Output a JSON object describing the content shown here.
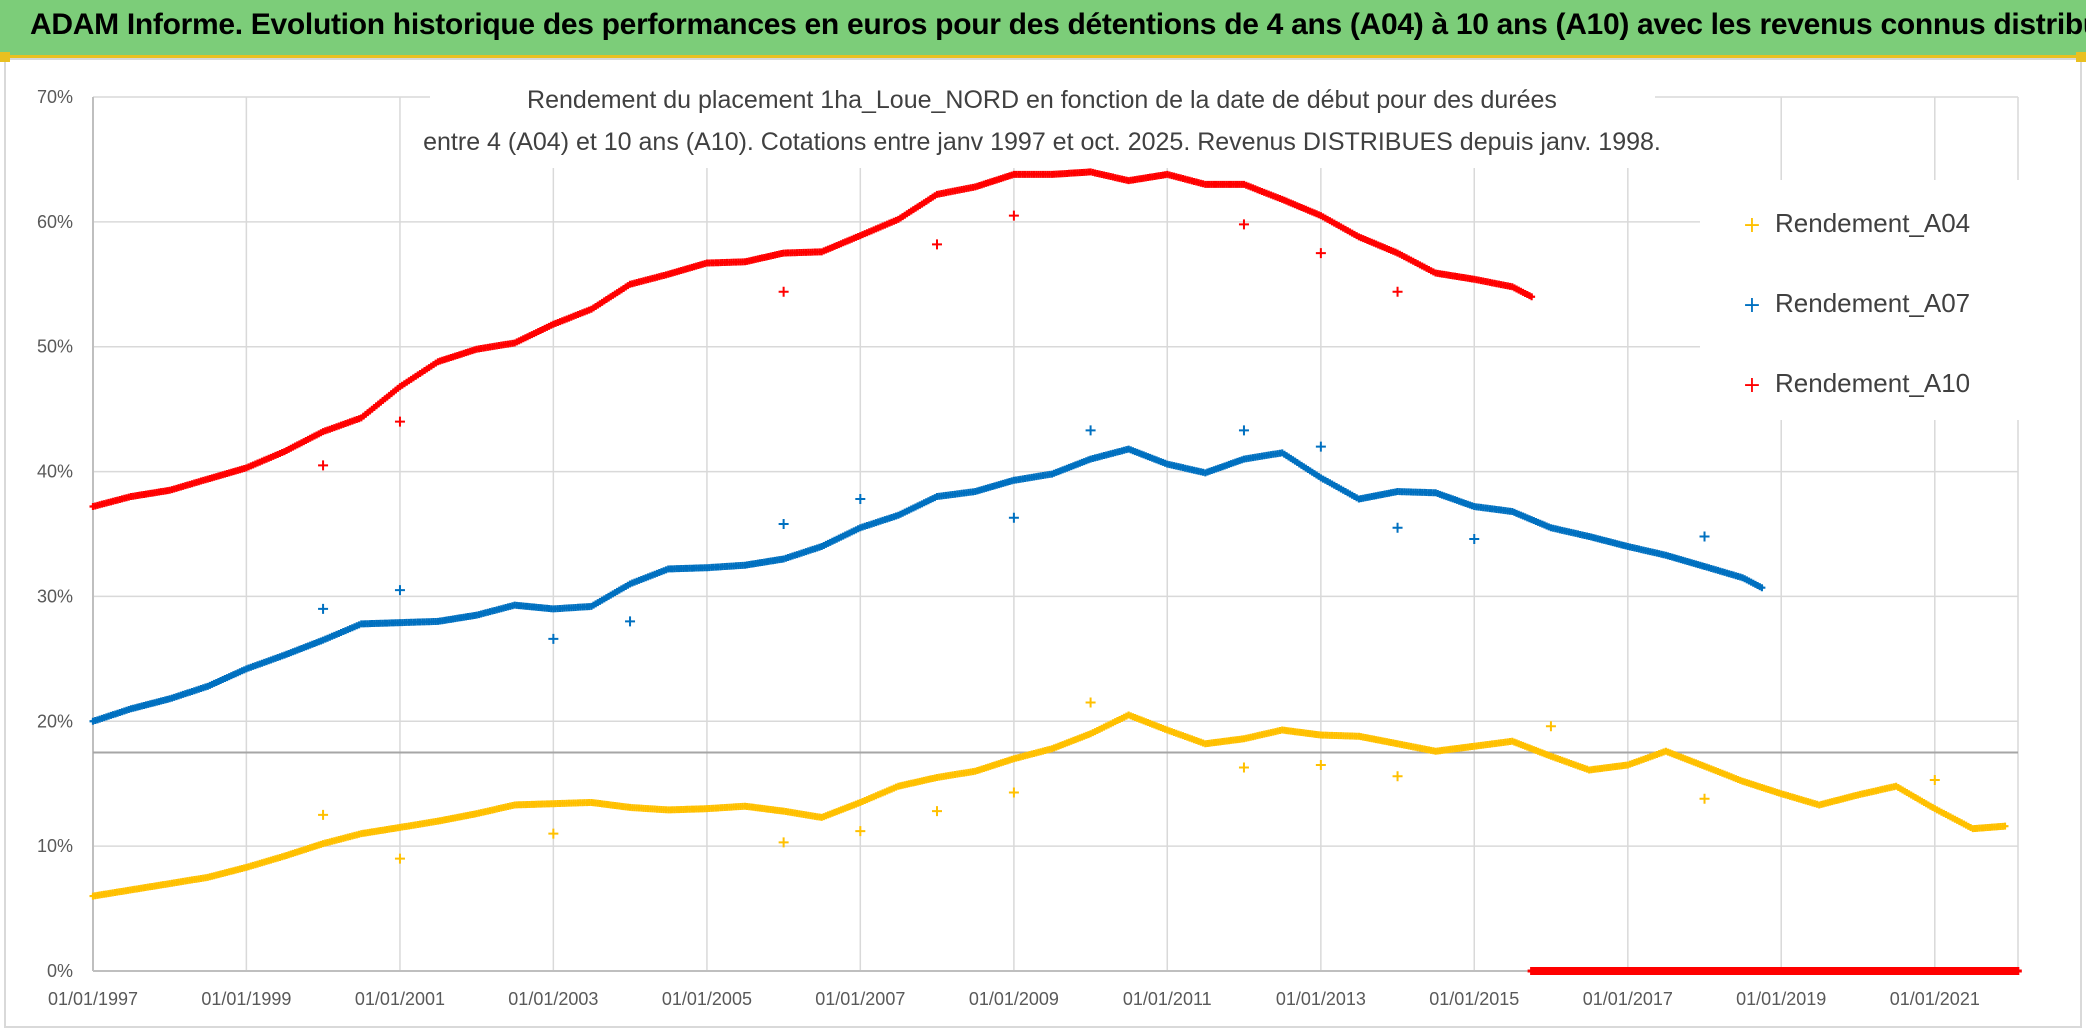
{
  "banner": {
    "title": "ADAM Informe. Evolution historique des performances en euros pour des détentions de 4 ans (A04) à 10 ans (A10) avec les revenus connus distribués"
  },
  "colors": {
    "banner": "#7ccd79",
    "accent": "#e9c020",
    "A04": "#ffc000",
    "A07": "#0070c0",
    "A10": "#ff0000"
  },
  "chart_data": {
    "type": "scatter",
    "title_line1": "Rendement du placement 1ha_Loue_NORD en fonction de la date de début pour des durées",
    "title_line2": "entre 4 (A04) et 10 ans (A10). Cotations entre janv 1997 et oct. 2025. Revenus DISTRIBUES depuis janv. 1998.",
    "x_tick_labels": [
      "01/01/1997",
      "01/01/1999",
      "01/01/2001",
      "01/01/2003",
      "01/01/2005",
      "01/01/2007",
      "01/01/2009",
      "01/01/2011",
      "01/01/2013",
      "01/01/2015",
      "01/01/2017",
      "01/01/2019",
      "01/01/2021"
    ],
    "xlim": [
      "1997-01-01",
      "2022-02-01"
    ],
    "y_tick_labels": [
      "0%",
      "10%",
      "20%",
      "30%",
      "40%",
      "50%",
      "60%",
      "70%"
    ],
    "ylim": [
      0,
      70
    ],
    "grid": true,
    "legend_position": "right",
    "reference_line_y": 17.5,
    "series": [
      {
        "name": "Rendement_A04",
        "color": "#ffc000",
        "points": [
          [
            "1997-01-01",
            6
          ],
          [
            "1998-01-01",
            7
          ],
          [
            "1998-07-01",
            7.5
          ],
          [
            "1999-01-01",
            8.3
          ],
          [
            "1999-07-01",
            9.2
          ],
          [
            "2000-01-01",
            10.2
          ],
          [
            "2000-07-01",
            11
          ],
          [
            "2001-01-01",
            11.5
          ],
          [
            "2001-07-01",
            12
          ],
          [
            "2002-01-01",
            12.6
          ],
          [
            "2002-07-01",
            13.3
          ],
          [
            "2003-01-01",
            13.4
          ],
          [
            "2003-07-01",
            13.5
          ],
          [
            "2004-01-01",
            13.1
          ],
          [
            "2004-07-01",
            12.9
          ],
          [
            "2005-01-01",
            13
          ],
          [
            "2005-07-01",
            13.2
          ],
          [
            "2006-01-01",
            12.8
          ],
          [
            "2006-07-01",
            12.3
          ],
          [
            "2007-01-01",
            13.5
          ],
          [
            "2007-07-01",
            14.8
          ],
          [
            "2008-01-01",
            15.5
          ],
          [
            "2008-07-01",
            16
          ],
          [
            "2009-01-01",
            17
          ],
          [
            "2009-07-01",
            17.8
          ],
          [
            "2010-01-01",
            19
          ],
          [
            "2010-07-01",
            20.5
          ],
          [
            "2011-01-01",
            19.3
          ],
          [
            "2011-07-01",
            18.2
          ],
          [
            "2012-01-01",
            18.6
          ],
          [
            "2012-07-01",
            19.3
          ],
          [
            "2013-01-01",
            18.9
          ],
          [
            "2013-07-01",
            18.8
          ],
          [
            "2014-01-01",
            18.2
          ],
          [
            "2014-07-01",
            17.6
          ],
          [
            "2015-01-01",
            18
          ],
          [
            "2015-07-01",
            18.4
          ],
          [
            "2016-01-01",
            17.2
          ],
          [
            "2016-07-01",
            16.1
          ],
          [
            "2017-01-01",
            16.5
          ],
          [
            "2017-07-01",
            17.6
          ],
          [
            "2018-01-01",
            16.4
          ],
          [
            "2018-07-01",
            15.2
          ],
          [
            "2019-01-01",
            14.2
          ],
          [
            "2019-07-01",
            13.3
          ],
          [
            "2020-01-01",
            14.1
          ],
          [
            "2020-07-01",
            14.8
          ],
          [
            "2021-01-01",
            13
          ],
          [
            "2021-07-01",
            11.4
          ],
          [
            "2021-12-01",
            11.6
          ]
        ],
        "outliers": [
          [
            "2000-01-01",
            12.5
          ],
          [
            "2001-01-01",
            9
          ],
          [
            "2003-01-01",
            11
          ],
          [
            "2006-01-01",
            10.3
          ],
          [
            "2007-01-01",
            11.2
          ],
          [
            "2008-01-01",
            12.8
          ],
          [
            "2009-01-01",
            14.3
          ],
          [
            "2010-01-01",
            21.5
          ],
          [
            "2012-01-01",
            16.3
          ],
          [
            "2013-01-01",
            16.5
          ],
          [
            "2014-01-01",
            15.6
          ],
          [
            "2016-01-01",
            19.6
          ],
          [
            "2018-01-01",
            13.8
          ],
          [
            "2021-01-01",
            15.3
          ]
        ]
      },
      {
        "name": "Rendement_A07",
        "color": "#0070c0",
        "points": [
          [
            "1997-01-01",
            20
          ],
          [
            "1997-07-01",
            21
          ],
          [
            "1998-01-01",
            21.8
          ],
          [
            "1998-07-01",
            22.8
          ],
          [
            "1999-01-01",
            24.2
          ],
          [
            "1999-07-01",
            25.3
          ],
          [
            "2000-01-01",
            26.5
          ],
          [
            "2000-07-01",
            27.8
          ],
          [
            "2001-01-01",
            27.9
          ],
          [
            "2001-07-01",
            28
          ],
          [
            "2002-01-01",
            28.5
          ],
          [
            "2002-07-01",
            29.3
          ],
          [
            "2003-01-01",
            29
          ],
          [
            "2003-07-01",
            29.2
          ],
          [
            "2004-01-01",
            31
          ],
          [
            "2004-07-01",
            32.2
          ],
          [
            "2005-01-01",
            32.3
          ],
          [
            "2005-07-01",
            32.5
          ],
          [
            "2006-01-01",
            33
          ],
          [
            "2006-07-01",
            34
          ],
          [
            "2007-01-01",
            35.5
          ],
          [
            "2007-07-01",
            36.5
          ],
          [
            "2008-01-01",
            38
          ],
          [
            "2008-07-01",
            38.4
          ],
          [
            "2009-01-01",
            39.3
          ],
          [
            "2009-07-01",
            39.8
          ],
          [
            "2010-01-01",
            41
          ],
          [
            "2010-07-01",
            41.8
          ],
          [
            "2011-01-01",
            40.6
          ],
          [
            "2011-07-01",
            39.9
          ],
          [
            "2012-01-01",
            41
          ],
          [
            "2012-07-01",
            41.5
          ],
          [
            "2013-01-01",
            39.5
          ],
          [
            "2013-07-01",
            37.8
          ],
          [
            "2014-01-01",
            38.4
          ],
          [
            "2014-07-01",
            38.3
          ],
          [
            "2015-01-01",
            37.2
          ],
          [
            "2015-07-01",
            36.8
          ],
          [
            "2016-01-01",
            35.5
          ],
          [
            "2016-07-01",
            34.8
          ],
          [
            "2017-01-01",
            34
          ],
          [
            "2017-07-01",
            33.3
          ],
          [
            "2018-01-01",
            32.4
          ],
          [
            "2018-07-01",
            31.5
          ],
          [
            "2018-10-01",
            30.7
          ]
        ],
        "outliers": [
          [
            "2000-01-01",
            29
          ],
          [
            "2001-01-01",
            30.5
          ],
          [
            "2003-01-01",
            26.6
          ],
          [
            "2004-01-01",
            28
          ],
          [
            "2006-01-01",
            35.8
          ],
          [
            "2007-01-01",
            37.8
          ],
          [
            "2009-01-01",
            36.3
          ],
          [
            "2010-01-01",
            43.3
          ],
          [
            "2012-01-01",
            43.3
          ],
          [
            "2013-01-01",
            42
          ],
          [
            "2014-01-01",
            35.5
          ],
          [
            "2015-01-01",
            34.6
          ],
          [
            "2018-01-01",
            34.8
          ]
        ]
      },
      {
        "name": "Rendement_A10",
        "color": "#ff0000",
        "points": [
          [
            "1997-01-01",
            37.2
          ],
          [
            "1997-07-01",
            38
          ],
          [
            "1998-01-01",
            38.5
          ],
          [
            "1998-07-01",
            39.4
          ],
          [
            "1999-01-01",
            40.3
          ],
          [
            "1999-07-01",
            41.6
          ],
          [
            "2000-01-01",
            43.2
          ],
          [
            "2000-07-01",
            44.3
          ],
          [
            "2001-01-01",
            46.8
          ],
          [
            "2001-07-01",
            48.8
          ],
          [
            "2002-01-01",
            49.8
          ],
          [
            "2002-07-01",
            50.3
          ],
          [
            "2003-01-01",
            51.8
          ],
          [
            "2003-07-01",
            53
          ],
          [
            "2004-01-01",
            55
          ],
          [
            "2004-07-01",
            55.8
          ],
          [
            "2005-01-01",
            56.7
          ],
          [
            "2005-07-01",
            56.8
          ],
          [
            "2006-01-01",
            57.5
          ],
          [
            "2006-07-01",
            57.6
          ],
          [
            "2007-01-01",
            58.9
          ],
          [
            "2007-07-01",
            60.2
          ],
          [
            "2008-01-01",
            62.2
          ],
          [
            "2008-07-01",
            62.8
          ],
          [
            "2009-01-01",
            63.8
          ],
          [
            "2009-07-01",
            63.8
          ],
          [
            "2010-01-01",
            64
          ],
          [
            "2010-07-01",
            63.3
          ],
          [
            "2011-01-01",
            63.8
          ],
          [
            "2011-07-01",
            63
          ],
          [
            "2012-01-01",
            63
          ],
          [
            "2012-07-01",
            61.8
          ],
          [
            "2013-01-01",
            60.5
          ],
          [
            "2013-07-01",
            58.8
          ],
          [
            "2014-01-01",
            57.5
          ],
          [
            "2014-07-01",
            55.9
          ],
          [
            "2015-01-01",
            55.4
          ],
          [
            "2015-07-01",
            54.8
          ],
          [
            "2015-10-01",
            54
          ]
        ],
        "outliers": [
          [
            "2000-01-01",
            40.5
          ],
          [
            "2001-01-01",
            44
          ],
          [
            "2006-01-01",
            54.4
          ],
          [
            "2008-01-01",
            58.2
          ],
          [
            "2009-01-01",
            60.5
          ],
          [
            "2012-01-01",
            59.8
          ],
          [
            "2013-01-01",
            57.5
          ],
          [
            "2014-01-01",
            54.4
          ]
        ],
        "zero_range": [
          "2015-10-01",
          "2022-02-01"
        ]
      }
    ]
  }
}
